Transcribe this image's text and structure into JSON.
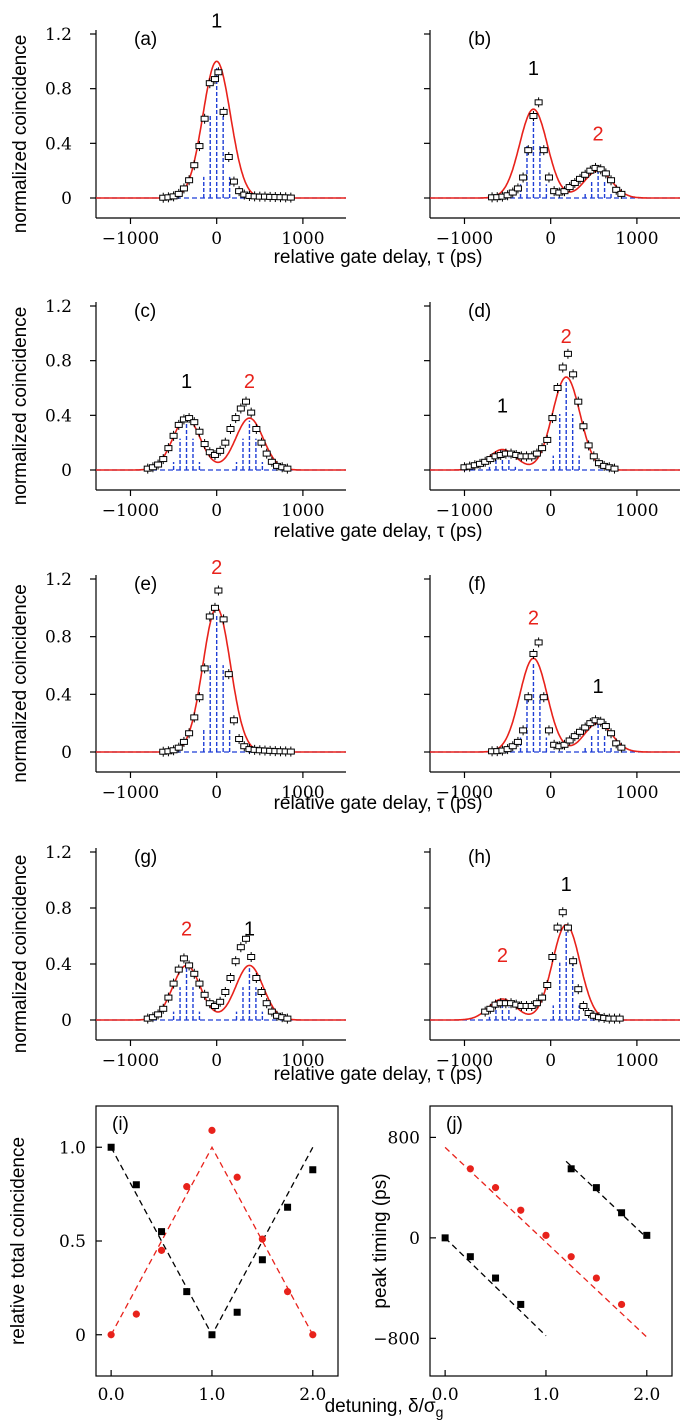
{
  "colors": {
    "fit": "#e8221b",
    "model": "#1f3ed6",
    "data": "#000000",
    "red_series": "#e8221b",
    "black_series": "#000000"
  },
  "labels": {
    "gate_delay": "relative gate delay, τ (ps)",
    "norm_coinc": "normalized coincidence",
    "rel_total": "relative total coincidence",
    "peak_timing": "peak timing (ps)",
    "detuning_main": "detuning, δ/σ",
    "detuning_sub": "g"
  },
  "chart_data": [
    {
      "type": "line",
      "panel": "(a)",
      "xlim": [
        -1400,
        1500
      ],
      "ylim": [
        0,
        1.2
      ],
      "x_ticks": [
        "−1000",
        "0",
        "1000"
      ],
      "y_ticks": [
        "0",
        "0.4",
        "0.8",
        "1.2"
      ],
      "peaks": [
        {
          "label": "1",
          "t": 0,
          "amp": 1.0,
          "color": "black"
        }
      ],
      "points_x": [
        -620,
        -560,
        -500,
        -440,
        -380,
        -320,
        -260,
        -200,
        -140,
        -80,
        -20,
        20,
        80,
        140,
        200,
        260,
        320,
        380,
        440,
        500,
        560,
        620,
        680,
        740,
        800,
        860
      ],
      "points_y": [
        0.002,
        0.005,
        0.012,
        0.03,
        0.07,
        0.13,
        0.24,
        0.38,
        0.58,
        0.84,
        0.87,
        0.92,
        0.63,
        0.3,
        0.12,
        0.05,
        0.025,
        0.015,
        0.012,
        0.01,
        0.01,
        0.008,
        0.007,
        0.006,
        0.005,
        0.003
      ]
    },
    {
      "type": "line",
      "panel": "(b)",
      "xlim": [
        -1400,
        1500
      ],
      "ylim": [
        0,
        1.2
      ],
      "x_ticks": [
        "−1000",
        "0",
        "1000"
      ],
      "y_ticks": [],
      "peaks": [
        {
          "label": "1",
          "t": -200,
          "amp": 0.65,
          "color": "black"
        },
        {
          "label": "2",
          "t": 550,
          "amp": 0.2,
          "color": "red"
        }
      ],
      "points_x": [
        -680,
        -620,
        -560,
        -500,
        -440,
        -380,
        -320,
        -260,
        -200,
        -140,
        -80,
        -20,
        40,
        100,
        160,
        220,
        280,
        340,
        400,
        460,
        520,
        580,
        640,
        700,
        760,
        820
      ],
      "points_y": [
        0.005,
        0.006,
        0.01,
        0.02,
        0.04,
        0.07,
        0.15,
        0.35,
        0.6,
        0.7,
        0.35,
        0.15,
        0.05,
        0.04,
        0.05,
        0.08,
        0.11,
        0.14,
        0.17,
        0.2,
        0.22,
        0.21,
        0.18,
        0.13,
        0.06,
        0.03
      ]
    },
    {
      "type": "line",
      "panel": "(c)",
      "xlim": [
        -1400,
        1500
      ],
      "ylim": [
        0,
        1.2
      ],
      "x_ticks": [
        "−1000",
        "0",
        "1000"
      ],
      "y_ticks": [
        "0",
        "0.4",
        "0.8",
        "1.2"
      ],
      "peaks": [
        {
          "label": "1",
          "t": -350,
          "amp": 0.38,
          "color": "black"
        },
        {
          "label": "2",
          "t": 380,
          "amp": 0.38,
          "color": "red"
        }
      ],
      "points_x": [
        -800,
        -740,
        -680,
        -620,
        -560,
        -500,
        -440,
        -380,
        -320,
        -260,
        -200,
        -140,
        -80,
        -20,
        40,
        100,
        160,
        220,
        280,
        340,
        400,
        460,
        520,
        580,
        640,
        700,
        760,
        820
      ],
      "points_y": [
        0.01,
        0.02,
        0.04,
        0.08,
        0.16,
        0.25,
        0.33,
        0.37,
        0.38,
        0.35,
        0.28,
        0.19,
        0.13,
        0.11,
        0.14,
        0.2,
        0.3,
        0.38,
        0.45,
        0.5,
        0.42,
        0.3,
        0.2,
        0.12,
        0.06,
        0.03,
        0.02,
        0.01
      ]
    },
    {
      "type": "line",
      "panel": "(d)",
      "xlim": [
        -1400,
        1500
      ],
      "ylim": [
        0,
        1.2
      ],
      "x_ticks": [
        "−1000",
        "0",
        "1000"
      ],
      "y_ticks": [],
      "peaks": [
        {
          "label": "1",
          "t": -560,
          "amp": 0.15,
          "color": "black"
        },
        {
          "label": "2",
          "t": 180,
          "amp": 0.68,
          "color": "red"
        }
      ],
      "points_x": [
        -1000,
        -940,
        -880,
        -820,
        -760,
        -700,
        -640,
        -580,
        -520,
        -460,
        -400,
        -340,
        -280,
        -220,
        -160,
        -100,
        -40,
        20,
        80,
        140,
        200,
        260,
        320,
        380,
        440,
        500,
        560,
        620,
        680,
        740
      ],
      "points_y": [
        0.02,
        0.025,
        0.035,
        0.045,
        0.06,
        0.08,
        0.1,
        0.11,
        0.12,
        0.12,
        0.11,
        0.1,
        0.1,
        0.1,
        0.12,
        0.16,
        0.22,
        0.38,
        0.6,
        0.75,
        0.85,
        0.7,
        0.5,
        0.32,
        0.18,
        0.1,
        0.05,
        0.03,
        0.02,
        0.01
      ]
    },
    {
      "type": "line",
      "panel": "(e)",
      "xlim": [
        -1400,
        1500
      ],
      "ylim": [
        0,
        1.2
      ],
      "x_ticks": [
        "−1000",
        "0",
        "1000"
      ],
      "y_ticks": [
        "0",
        "0.4",
        "0.8",
        "1.2"
      ],
      "peaks": [
        {
          "label": "2",
          "t": 0,
          "amp": 1.0,
          "color": "red"
        }
      ],
      "points_x": [
        -620,
        -560,
        -500,
        -440,
        -380,
        -320,
        -260,
        -200,
        -140,
        -80,
        -20,
        20,
        80,
        140,
        200,
        260,
        320,
        380,
        440,
        500,
        560,
        620,
        680,
        740,
        800,
        860
      ],
      "points_y": [
        0.002,
        0.005,
        0.012,
        0.03,
        0.07,
        0.13,
        0.24,
        0.38,
        0.58,
        0.94,
        1.0,
        1.12,
        0.92,
        0.54,
        0.22,
        0.09,
        0.04,
        0.02,
        0.015,
        0.012,
        0.01,
        0.008,
        0.006,
        0.005,
        0.004,
        0.003
      ]
    },
    {
      "type": "line",
      "panel": "(f)",
      "xlim": [
        -1400,
        1500
      ],
      "ylim": [
        0,
        1.2
      ],
      "x_ticks": [
        "−1000",
        "0",
        "1000"
      ],
      "y_ticks": [],
      "peaks": [
        {
          "label": "2",
          "t": -200,
          "amp": 0.65,
          "color": "red"
        },
        {
          "label": "1",
          "t": 550,
          "amp": 0.2,
          "color": "black"
        }
      ],
      "points_x": [
        -680,
        -620,
        -560,
        -500,
        -440,
        -380,
        -320,
        -260,
        -200,
        -140,
        -80,
        -20,
        40,
        100,
        160,
        220,
        280,
        340,
        400,
        460,
        520,
        580,
        640,
        700,
        760,
        820
      ],
      "points_y": [
        0.005,
        0.006,
        0.01,
        0.02,
        0.04,
        0.07,
        0.15,
        0.38,
        0.68,
        0.76,
        0.38,
        0.15,
        0.05,
        0.04,
        0.05,
        0.08,
        0.11,
        0.14,
        0.17,
        0.2,
        0.22,
        0.21,
        0.18,
        0.13,
        0.06,
        0.03
      ]
    },
    {
      "type": "line",
      "panel": "(g)",
      "xlim": [
        -1400,
        1500
      ],
      "ylim": [
        0,
        1.2
      ],
      "x_ticks": [
        "−1000",
        "0",
        "1000"
      ],
      "y_ticks": [
        "0",
        "0.4",
        "0.8",
        "1.2"
      ],
      "peaks": [
        {
          "label": "2",
          "t": -350,
          "amp": 0.39,
          "color": "red"
        },
        {
          "label": "1",
          "t": 380,
          "amp": 0.39,
          "color": "black"
        }
      ],
      "points_x": [
        -800,
        -740,
        -680,
        -620,
        -560,
        -500,
        -440,
        -380,
        -320,
        -260,
        -200,
        -140,
        -80,
        -20,
        40,
        100,
        160,
        220,
        280,
        340,
        400,
        460,
        520,
        580,
        640,
        700,
        760,
        820
      ],
      "points_y": [
        0.01,
        0.02,
        0.04,
        0.08,
        0.16,
        0.26,
        0.36,
        0.44,
        0.39,
        0.33,
        0.26,
        0.18,
        0.12,
        0.1,
        0.13,
        0.2,
        0.3,
        0.42,
        0.52,
        0.58,
        0.45,
        0.3,
        0.2,
        0.12,
        0.06,
        0.03,
        0.02,
        0.01
      ]
    },
    {
      "type": "line",
      "panel": "(h)",
      "xlim": [
        -1400,
        1500
      ],
      "ylim": [
        0,
        1.2
      ],
      "x_ticks": [
        "−1000",
        "0",
        "1000"
      ],
      "y_ticks": [],
      "peaks": [
        {
          "label": "2",
          "t": -560,
          "amp": 0.15,
          "color": "red"
        },
        {
          "label": "1",
          "t": 180,
          "amp": 0.68,
          "color": "black"
        }
      ],
      "points_x": [
        -760,
        -700,
        -640,
        -580,
        -520,
        -460,
        -400,
        -340,
        -280,
        -220,
        -160,
        -100,
        -40,
        20,
        80,
        140,
        200,
        260,
        320,
        380,
        440,
        500,
        560,
        620,
        680,
        740,
        800
      ],
      "points_y": [
        0.06,
        0.08,
        0.11,
        0.12,
        0.12,
        0.12,
        0.11,
        0.1,
        0.1,
        0.1,
        0.12,
        0.16,
        0.25,
        0.45,
        0.66,
        0.77,
        0.66,
        0.42,
        0.22,
        0.1,
        0.05,
        0.03,
        0.02,
        0.015,
        0.01,
        0.01,
        0.01
      ]
    },
    {
      "type": "scatter",
      "panel": "(i)",
      "xlim": [
        -0.15,
        2.25
      ],
      "ylim": [
        -0.22,
        1.22
      ],
      "x_ticks": [
        "0.0",
        "1.0",
        "2.0"
      ],
      "y_ticks": [
        "0",
        "0.5",
        "1.0"
      ],
      "series": [
        {
          "color": "black",
          "marker": "square",
          "x": [
            0,
            0.25,
            0.5,
            0.75,
            1.0,
            1.25,
            1.5,
            1.75,
            2.0
          ],
          "y": [
            1.0,
            0.8,
            0.55,
            0.23,
            0.0,
            0.12,
            0.4,
            0.68,
            0.88
          ]
        },
        {
          "color": "red",
          "marker": "circle",
          "x": [
            0,
            0.25,
            0.5,
            0.75,
            1.0,
            1.25,
            1.5,
            1.75,
            2.0
          ],
          "y": [
            0.0,
            0.11,
            0.45,
            0.79,
            1.09,
            0.84,
            0.51,
            0.23,
            0.0
          ]
        }
      ],
      "fit_lines": [
        {
          "color": "black",
          "x": [
            0,
            1.0,
            2.0
          ],
          "y": [
            1.0,
            0.0,
            1.0
          ]
        },
        {
          "color": "red",
          "x": [
            0,
            1.0,
            2.0
          ],
          "y": [
            0.0,
            1.0,
            0.0
          ]
        }
      ]
    },
    {
      "type": "scatter",
      "panel": "(j)",
      "xlim": [
        -0.15,
        2.25
      ],
      "ylim": [
        -1100,
        1050
      ],
      "x_ticks": [
        "0.0",
        "1.0",
        "2.0"
      ],
      "y_ticks": [
        "−800",
        "0",
        "800"
      ],
      "series": [
        {
          "color": "black",
          "marker": "square",
          "x": [
            0,
            0.25,
            0.5,
            0.75,
            1.25,
            1.5,
            1.75,
            2.0
          ],
          "y": [
            0,
            -150,
            -320,
            -530,
            550,
            400,
            200,
            20
          ]
        },
        {
          "color": "red",
          "marker": "circle",
          "x": [
            0.25,
            0.5,
            0.75,
            1.0,
            1.25,
            1.5,
            1.75
          ],
          "y": [
            550,
            400,
            220,
            20,
            -150,
            -320,
            -530
          ]
        }
      ],
      "fit_lines": [
        {
          "color": "black",
          "x": [
            0,
            1.0
          ],
          "y": [
            0,
            -780
          ]
        },
        {
          "color": "black",
          "x": [
            1.2,
            2.0
          ],
          "y": [
            610,
            0
          ]
        },
        {
          "color": "red",
          "x": [
            0,
            2.0
          ],
          "y": [
            720,
            -790
          ]
        }
      ]
    }
  ]
}
